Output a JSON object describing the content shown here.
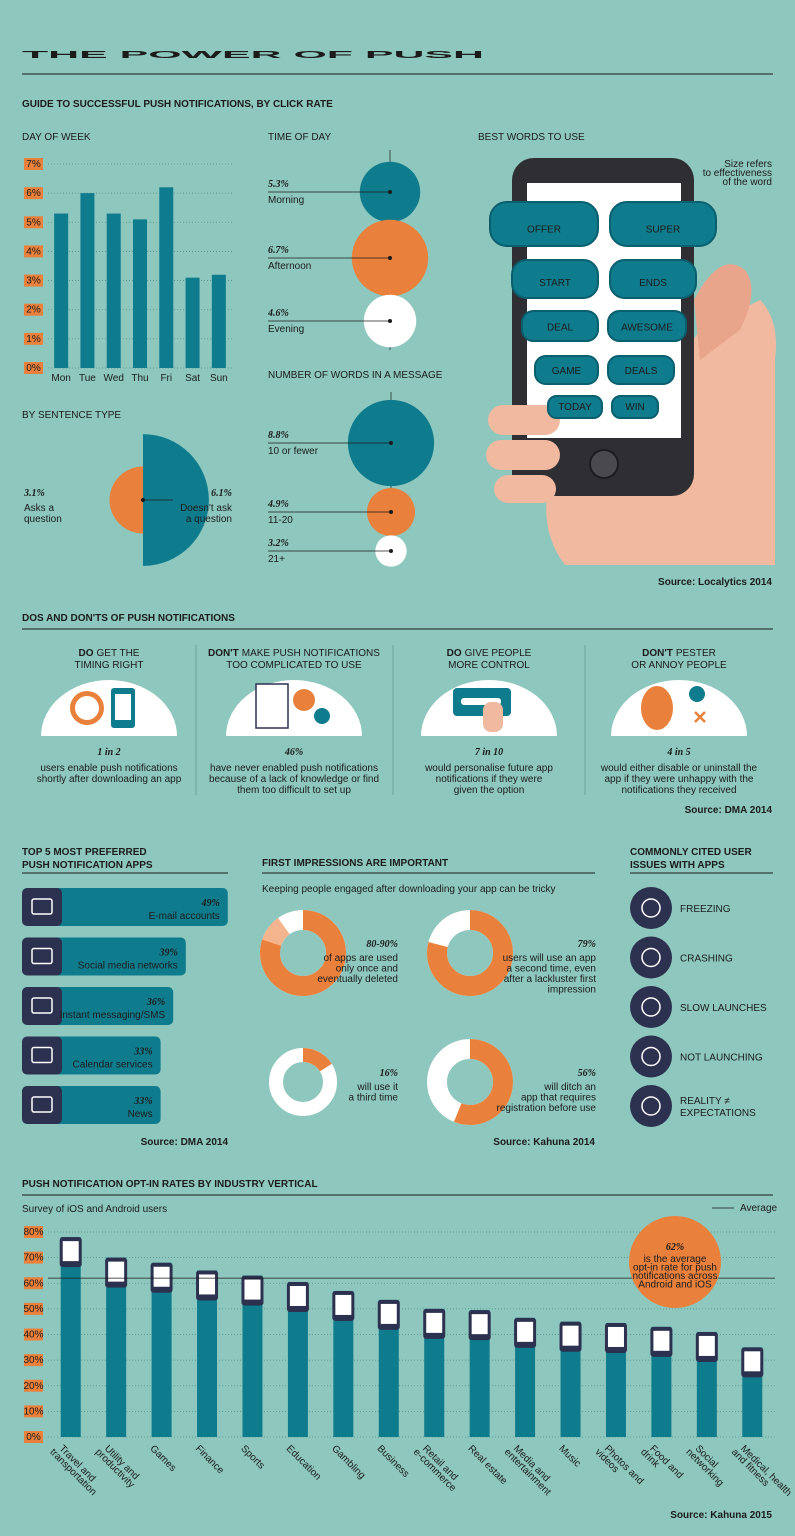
{
  "title": "THE POWER OF PUSH",
  "guide_heading": "GUIDE TO SUCCESSFUL PUSH NOTIFICATIONS, BY CLICK RATE",
  "chart_data": [
    {
      "type": "bar",
      "title": "DAY OF WEEK",
      "categories": [
        "Mon",
        "Tue",
        "Wed",
        "Thu",
        "Fri",
        "Sat",
        "Sun"
      ],
      "values": [
        5.3,
        6.0,
        5.3,
        5.1,
        6.2,
        3.1,
        3.2
      ],
      "color": "#0f7c8e",
      "ylim": [
        0,
        7
      ],
      "yticks": [
        {
          "value": 0,
          "label": "0%"
        },
        {
          "value": 1,
          "label": "1%"
        },
        {
          "value": 2,
          "label": "2%"
        },
        {
          "value": 3,
          "label": "3%"
        },
        {
          "value": 4,
          "label": "4%"
        },
        {
          "value": 5,
          "label": "5%"
        },
        {
          "value": 6,
          "label": "6%"
        },
        {
          "value": 7,
          "label": "7%"
        }
      ],
      "grid": true
    },
    {
      "type": "bubble",
      "title": "TIME OF DAY",
      "categories": [
        "Morning",
        "Afternoon",
        "Evening"
      ],
      "values": [
        5.3,
        6.7,
        4.6
      ],
      "value_labels": [
        "5.3%",
        "6.7%",
        "4.6%"
      ],
      "colors": [
        "#0f7c8e",
        "#e9813c",
        "#ffffff"
      ]
    },
    {
      "type": "bubble",
      "title": "NUMBER OF WORDS IN A MESSAGE",
      "categories": [
        "10 or fewer",
        "11-20",
        "21+"
      ],
      "values": [
        8.8,
        4.9,
        3.2
      ],
      "value_labels": [
        "8.8%",
        "4.9%",
        "3.2%"
      ],
      "colors": [
        "#0f7c8e",
        "#e9813c",
        "#ffffff"
      ]
    },
    {
      "type": "half_circle",
      "title": "BY SENTENCE TYPE",
      "categories": [
        [
          "Asks a",
          "question"
        ],
        [
          "Doesn't ask",
          "a question"
        ]
      ],
      "values": [
        3.1,
        6.1
      ],
      "value_labels": [
        "3.1%",
        "6.1%"
      ],
      "colors": [
        "#e9813c",
        "#0f7c8e"
      ]
    },
    {
      "type": "hbar",
      "title": [
        "TOP 5 MOST PREFERRED",
        "PUSH NOTIFICATION APPS"
      ],
      "categories": [
        "E-mail accounts",
        "Social media networks",
        "Instant messaging/SMS",
        "Calendar services",
        "News"
      ],
      "values": [
        49,
        39,
        36,
        33,
        33
      ],
      "value_labels": [
        "49%",
        "39%",
        "36%",
        "33%",
        "33%"
      ],
      "color": "#0f7c8e",
      "source": "Source: DMA 2014"
    },
    {
      "type": "donut",
      "title": "FIRST IMPRESSIONS ARE IMPORTANT",
      "subtitle": "Keeping people engaged after downloading your app can be tricky",
      "values": [
        [
          80,
          90
        ],
        79,
        16,
        56
      ],
      "value_labels": [
        "80-90%",
        "79%",
        "16%",
        "56%"
      ],
      "descriptions": [
        [
          "of apps are used",
          "only once and",
          "eventually deleted"
        ],
        [
          "users will use an app",
          "a second time, even",
          "after a lackluster first",
          "impression"
        ],
        [
          "will use it",
          "a third time"
        ],
        [
          "will ditch an",
          "app that requires",
          "registration before use"
        ]
      ],
      "color": "#e9813c",
      "source": "Source: Kahuna 2014"
    },
    {
      "type": "bar",
      "title": "PUSH NOTIFICATION OPT-IN RATES BY INDUSTRY VERTICAL",
      "subtitle": "Survey of iOS and Android users",
      "categories": [
        [
          "Travel and",
          "transportation"
        ],
        [
          "Utility and",
          "productivity"
        ],
        [
          "Games"
        ],
        [
          "Finance"
        ],
        [
          "Sports"
        ],
        [
          "Education"
        ],
        [
          "Gambling"
        ],
        [
          "Business"
        ],
        [
          "Retail and",
          "e-commerce"
        ],
        [
          "Real estate"
        ],
        [
          "Media and",
          "entertainment"
        ],
        [
          "Music"
        ],
        [
          "Photos and",
          "videos"
        ],
        [
          "Food and",
          "drink"
        ],
        [
          "Social",
          "networking"
        ],
        [
          "Medical, health",
          "and fitness"
        ]
      ],
      "values": [
        78,
        70,
        68,
        65,
        63,
        60.5,
        57,
        53.5,
        50,
        49.5,
        46.5,
        45,
        44.5,
        43,
        41,
        35
      ],
      "color": "#0f7c8e",
      "ylim": [
        0,
        80
      ],
      "yticks": [
        {
          "value": 0,
          "label": "0%"
        },
        {
          "value": 10,
          "label": "10%"
        },
        {
          "value": 20,
          "label": "20%"
        },
        {
          "value": 30,
          "label": "30%"
        },
        {
          "value": 40,
          "label": "40%"
        },
        {
          "value": 50,
          "label": "50%"
        },
        {
          "value": 60,
          "label": "60%"
        },
        {
          "value": 70,
          "label": "70%"
        },
        {
          "value": 80,
          "label": "80%"
        }
      ],
      "grid": true,
      "average": 62,
      "average_label": "62%",
      "legend": "Average",
      "annotation": [
        "is the average",
        "opt-in rate for push",
        "notifications across",
        "Android and iOS"
      ],
      "source": "Source: Kahuna 2015"
    }
  ],
  "best_words": {
    "title": "BEST WORDS TO USE",
    "note": [
      "Size refers",
      "to effectiveness",
      "of the word"
    ],
    "words": [
      "OFFER",
      "SUPER",
      "START",
      "ENDS",
      "DEAL",
      "AWESOME",
      "GAME",
      "DEALS",
      "TODAY",
      "WIN"
    ],
    "source": "Source: Localytics 2014"
  },
  "dos_donts": {
    "heading": "DOS AND DON'TS OF PUSH NOTIFICATIONS",
    "cards": [
      {
        "lead": "DO",
        "heading": [
          "GET THE",
          "TIMING RIGHT"
        ],
        "stat": "1 in 2",
        "desc": [
          "users enable push notifications",
          "shortly after downloading an app"
        ]
      },
      {
        "lead": "DON'T",
        "heading": [
          "MAKE PUSH NOTIFICATIONS",
          "TOO COMPLICATED TO USE"
        ],
        "stat": "46%",
        "desc": [
          "have never enabled push notifications",
          "because of a lack of knowledge or find",
          "them too difficult to set up"
        ]
      },
      {
        "lead": "DO",
        "heading": [
          "GIVE PEOPLE",
          "MORE CONTROL"
        ],
        "stat": "7 in 10",
        "desc": [
          "would personalise future app",
          "notifications if they were",
          "given the option"
        ]
      },
      {
        "lead": "DON'T",
        "heading": [
          "PESTER",
          "OR ANNOY PEOPLE"
        ],
        "stat": "4 in 5",
        "desc": [
          "would either disable or uninstall the",
          "app if they were unhappy with the",
          "notifications they received"
        ]
      }
    ],
    "source": "Source: DMA 2014"
  },
  "issues": {
    "title": [
      "COMMONLY CITED USER",
      "ISSUES WITH APPS"
    ],
    "items": [
      [
        "FREEZING"
      ],
      [
        "CRASHING"
      ],
      [
        "SLOW LAUNCHES"
      ],
      [
        "NOT LAUNCHING"
      ],
      [
        "REALITY ≠",
        "EXPECTATIONS"
      ]
    ]
  }
}
